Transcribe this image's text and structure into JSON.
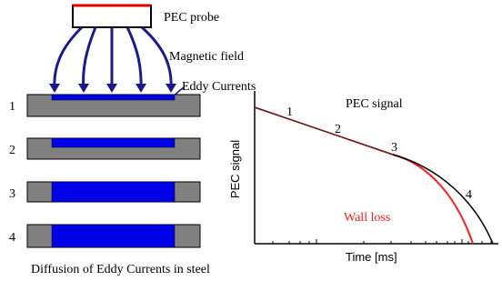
{
  "probe": {
    "label": "PEC probe"
  },
  "field": {
    "label": "Magnetic field"
  },
  "eddy": {
    "label": "Eddy Currents"
  },
  "plates": [
    {
      "label": "1"
    },
    {
      "label": "2"
    },
    {
      "label": "3"
    },
    {
      "label": "4"
    }
  ],
  "caption": "Diffusion of Eddy Currents in steel",
  "graph": {
    "title": "PEC signal",
    "y_label": "PEC signal",
    "x_label": "Time [ms]",
    "points": [
      "1",
      "2",
      "3",
      "4"
    ],
    "wall_loss": "Wall loss"
  }
}
